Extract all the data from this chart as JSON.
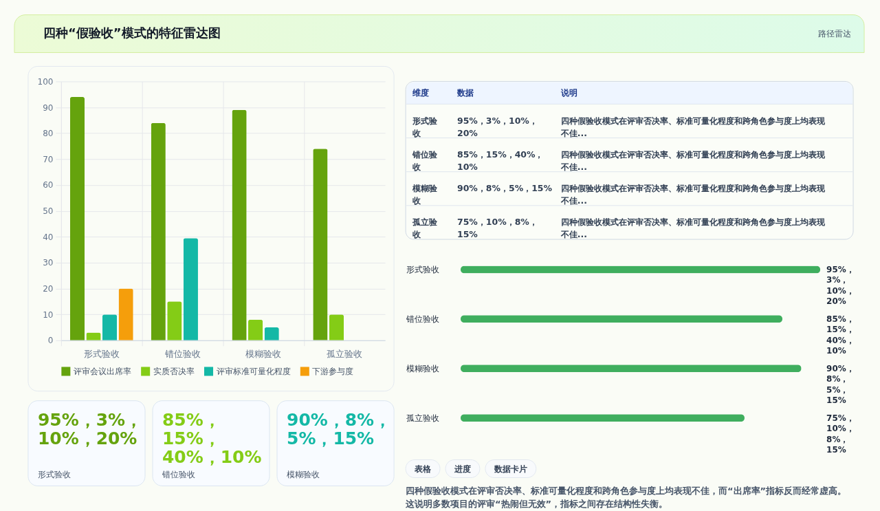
{
  "chart_data": [
    {
      "type": "other",
      "title": "四种“假验收”模式的特征雷达图",
      "annotations": [
        "路径雷达"
      ]
    },
    {
      "type": "bar",
      "categories": [
        "形式验收",
        "错位验收",
        "模糊验收",
        "孤立验收"
      ],
      "series": [
        {
          "name": "评审会议出席率",
          "color": "#65a30d",
          "values": [
            94,
            84,
            89,
            74
          ]
        },
        {
          "name": "实质否决率",
          "color": "#84cc16",
          "values": [
            3,
            15,
            8,
            10
          ]
        },
        {
          "name": "评审标准可量化程度",
          "color": "#14b8a6",
          "values": [
            10,
            39.5,
            5,
            null
          ]
        },
        {
          "name": "下游参与度",
          "color": "#f59e0b",
          "values": [
            20,
            null,
            null,
            null
          ]
        }
      ],
      "ylim": [
        0,
        100
      ],
      "yticks": [
        0,
        10,
        20,
        30,
        40,
        50,
        60,
        70,
        80,
        90,
        100
      ],
      "grid": true,
      "legend": "bottom"
    },
    {
      "type": "other",
      "categories": [
        "维度",
        "数据",
        "说明"
      ],
      "annotations": [
        "形式验收",
        "95%，3%，10%，20%",
        "四种假验收模式在评审否决率、标准可量化程度和跨角色参与度上均表现不佳...",
        "错位验收",
        "85%，15%，40%，10%",
        "四种假验收模式在评审否决率、标准可量化程度和跨角色参与度上均表现不佳...",
        "模糊验收",
        "90%，8%，5%，15%",
        "四种假验收模式在评审否决率、标准可量化程度和跨角色参与度上均表现不佳...",
        "孤立验收",
        "75%，10%，8%，15%",
        "四种假验收模式在评审否决率、标准可量化程度和跨角色参与度上均表现不佳..."
      ]
    },
    {
      "type": "bar",
      "orientation": "horizontal",
      "categories": [
        "形式验收",
        "错位验收",
        "模糊验收",
        "孤立验收"
      ],
      "values": [
        95,
        85,
        90,
        75
      ],
      "color": "#3fae5e",
      "value_labels": [
        "95%，3%，10%，20%",
        "85%，15%，40%，10%",
        "90%，8%，5%，15%",
        "75%，10%，8%，15%"
      ]
    },
    {
      "type": "other",
      "annotations": [
        "95%，3%，10%，20%",
        "形式验收",
        "85%，15%，40%，10%",
        "错位验收",
        "90%，8%，5%，15%",
        "模糊验收"
      ],
      "colors": [
        "#65a30d",
        "#84cc16",
        "#14b8a6"
      ]
    },
    {
      "type": "other",
      "annotations": [
        "表格",
        "进度",
        "数据卡片"
      ]
    },
    {
      "type": "other",
      "annotations": [
        "四种假验收模式在评审否决率、标准可量化程度和跨角色参与度上均表现不佳，而“出席率”指标反而经常虚高。这说明多数项目的评审“热闹但无效”，指标之间存在结构性失衡。"
      ]
    }
  ]
}
